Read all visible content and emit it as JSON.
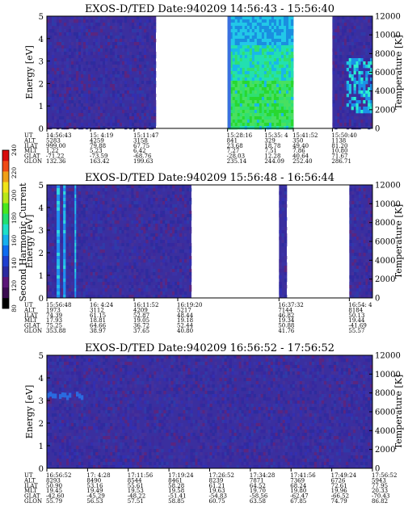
{
  "colorbar": {
    "label": "Second Harmonic Current",
    "ticks": [
      "80",
      "120",
      "140",
      "160",
      "180",
      "200",
      "220",
      "240"
    ],
    "colors": [
      "#000000",
      "#3a0a50",
      "#5a1478",
      "#2a2aa0",
      "#1f3fd0",
      "#0e6cf0",
      "#17b0ee",
      "#1ee0c8",
      "#22e070",
      "#48e81e",
      "#b8e818",
      "#f0e418",
      "#f0a018",
      "#f04a14",
      "#d80c0c"
    ]
  },
  "chart_data": [
    {
      "type": "heatmap",
      "title": "EXOS-D/TED   Date:940209  14:56:43 - 15:56:40",
      "ylabel": "Energy [eV]",
      "y2label": "Temperature [K]",
      "ylim": [
        0,
        5
      ],
      "y2lim": [
        0,
        12000
      ],
      "yticks": [
        "0",
        "1",
        "2",
        "3",
        "4",
        "5"
      ],
      "y2ticks": [
        "0",
        "2000",
        "4000",
        "6000",
        "8000",
        "10000",
        "12000"
      ],
      "segments": [
        [
          0,
          0.335
        ],
        [
          0.555,
          0.757
        ],
        [
          0.877,
          1.0
        ]
      ],
      "hot": [
        {
          "x0": 0.555,
          "x1": 0.757,
          "kind": "green"
        },
        {
          "x0": 0.92,
          "x1": 1.0,
          "kind": "cyan"
        }
      ],
      "orbit": {
        "labels": [
          "UT",
          "ALT",
          "ILAT",
          "MLT",
          "GLAT",
          "GLON"
        ],
        "columns": [
          {
            "pos": 0.0,
            "values": [
              "14:56:43",
              "5283",
              "999.00",
              "1.22",
              "-71.22",
              "132.36"
            ]
          },
          {
            "pos": 0.134,
            "values": [
              "15: 4:19",
              "4259",
              "79.88",
              "5.23",
              "-73.59",
              "163.42"
            ]
          },
          {
            "pos": 0.268,
            "values": [
              "15:11:47",
              "3158",
              "67.75",
              "6.42",
              "-68.76",
              "199.63"
            ]
          },
          {
            "pos": 0.555,
            "values": [
              "15:28:16",
              "841",
              "23.68",
              "7.27",
              "-28.03",
              "235.14"
            ]
          },
          {
            "pos": 0.671,
            "values": [
              "15:35: 4",
              "329",
              "18.78",
              "7.51",
              "12.28",
              "244.09"
            ]
          },
          {
            "pos": 0.757,
            "values": [
              "15:41:52",
              "350",
              "49.40",
              "7.86",
              "40.64",
              "252.40"
            ]
          },
          {
            "pos": 0.877,
            "values": [
              "15:50:40",
              "1138",
              "81.20",
              "10.80",
              "71.67",
              "286.71"
            ]
          }
        ]
      }
    },
    {
      "type": "heatmap",
      "title": "EXOS-D/TED   Date:940209  15:56:48 - 16:56:44",
      "ylabel": "Energy [eV]",
      "y2label": "Temperature [K]",
      "ylim": [
        0,
        5
      ],
      "y2lim": [
        0,
        12000
      ],
      "yticks": [
        "0",
        "1",
        "2",
        "3",
        "4",
        "5"
      ],
      "y2ticks": [
        "0",
        "2000",
        "4000",
        "6000",
        "8000",
        "10000",
        "12000"
      ],
      "segments": [
        [
          0,
          0.444
        ],
        [
          0.713,
          0.737
        ],
        [
          0.929,
          1.0
        ]
      ],
      "hot": [
        {
          "x0": 0.03,
          "x1": 0.04,
          "kind": "stripe"
        },
        {
          "x0": 0.05,
          "x1": 0.058,
          "kind": "stripe"
        },
        {
          "x0": 0.085,
          "x1": 0.09,
          "kind": "stripe"
        }
      ],
      "orbit": {
        "labels": [
          "UT",
          "ALT",
          "ILAT",
          "MLT",
          "GLAT",
          "GLON"
        ],
        "columns": [
          {
            "pos": 0.0,
            "values": [
              "15:56:48",
              "1973",
              "74.39",
              "17.93",
              "75.25",
              "353.88"
            ]
          },
          {
            "pos": 0.134,
            "values": [
              "16: 4:24",
              "3112",
              "61.15",
              "18.81",
              "64.66",
              "38.97"
            ]
          },
          {
            "pos": 0.268,
            "values": [
              "16:11:52",
              "4209",
              "52.87",
              "19.05",
              "36.72",
              "37.65"
            ]
          },
          {
            "pos": 0.402,
            "values": [
              "16:19:20",
              "5217",
              "48.44",
              "19.18",
              "52.44",
              "40.80"
            ]
          },
          {
            "pos": 0.713,
            "values": [
              "16:37:32",
              "7144",
              "46.82",
              "19.34",
              "50.88",
              "41.76"
            ]
          },
          {
            "pos": 0.929,
            "values": [
              "16:54: 4",
              "8184",
              "50.13",
              "19.44",
              "-41.69",
              "55.57"
            ]
          }
        ]
      }
    },
    {
      "type": "heatmap",
      "title": "EXOS-D/TED   Date:940209  16:56:52 - 17:56:52",
      "ylabel": "Energy [eV]",
      "y2label": "Temperature [K]",
      "ylim": [
        0,
        5
      ],
      "y2lim": [
        0,
        12000
      ],
      "yticks": [
        "0",
        "1",
        "2",
        "3",
        "4",
        "5"
      ],
      "y2ticks": [
        "0",
        "2000",
        "4000",
        "6000",
        "8000",
        "10000",
        "12000"
      ],
      "segments": [
        [
          0,
          1.0
        ]
      ],
      "hot": [
        {
          "x0": 0.0,
          "x1": 0.12,
          "kind": "band"
        }
      ],
      "orbit": {
        "labels": [
          "UT",
          "ALT",
          "ILAT",
          "MLT",
          "GLAT",
          "GLON"
        ],
        "columns": [
          {
            "pos": 0.0,
            "values": [
              "16:56:52",
              "8293",
              "50.90",
              "19.45",
              "-42.60",
              "55.79"
            ]
          },
          {
            "pos": 0.125,
            "values": [
              "17: 4:28",
              "8490",
              "53.16",
              "19.49",
              "-45.29",
              "56.53"
            ]
          },
          {
            "pos": 0.25,
            "values": [
              "17:11:56",
              "8544",
              "55.61",
              "19.53",
              "-48.22",
              "57.51"
            ]
          },
          {
            "pos": 0.375,
            "values": [
              "17:19:24",
              "8461",
              "58.28",
              "19.58",
              "-51.41",
              "58.85"
            ]
          },
          {
            "pos": 0.5,
            "values": [
              "17:26:52",
              "8239",
              "61.21",
              "19.63",
              "-54.83",
              "60.75"
            ]
          },
          {
            "pos": 0.625,
            "values": [
              "17:34:28",
              "7871",
              "64.52",
              "19.70",
              "-58.56",
              "63.58"
            ]
          },
          {
            "pos": 0.75,
            "values": [
              "17:41:56",
              "7369",
              "68.24",
              "19.80",
              "-62.47",
              "67.85"
            ]
          },
          {
            "pos": 0.875,
            "values": [
              "17:49:24",
              "6726",
              "72.61",
              "19.96",
              "-66.52",
              "74.79"
            ]
          },
          {
            "pos": 1.0,
            "values": [
              "17:56:52",
              "5943",
              "77.95",
              "20.33",
              "-70.43",
              "86.82"
            ]
          }
        ]
      }
    }
  ]
}
